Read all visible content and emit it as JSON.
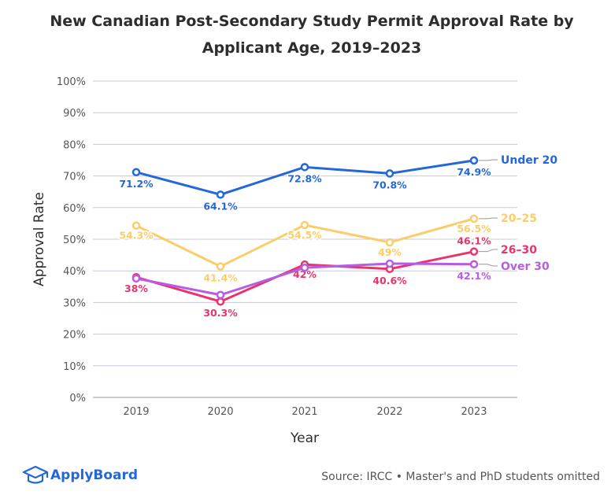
{
  "chart_data": {
    "type": "line",
    "title_line1": "New Canadian Post-Secondary Study Permit Approval Rate by",
    "title_line2": "Applicant Age, 2019–2023",
    "xlabel": "Year",
    "ylabel": "Approval Rate",
    "categories": [
      "2019",
      "2020",
      "2021",
      "2022",
      "2023"
    ],
    "ylim": [
      0,
      100
    ],
    "yticks": [
      "0%",
      "10%",
      "20%",
      "30%",
      "40%",
      "50%",
      "60%",
      "70%",
      "80%",
      "90%",
      "100%"
    ],
    "grid": true,
    "series": [
      {
        "name": "Under 20",
        "color": "#2467d8",
        "values": [
          71.2,
          64.1,
          72.8,
          70.8,
          74.9
        ],
        "labels": [
          "71.2%",
          "64.1%",
          "72.8%",
          "70.8%",
          "74.9%"
        ]
      },
      {
        "name": "20–25",
        "color": "#fbcd6a",
        "values": [
          54.3,
          41.4,
          54.5,
          49.0,
          56.5
        ],
        "labels": [
          "54.3%",
          "41.4%",
          "54.5%",
          "49%",
          "56.5%"
        ]
      },
      {
        "name": "26–30",
        "color": "#e8336f",
        "values": [
          38.0,
          30.3,
          42.0,
          40.6,
          46.1
        ],
        "labels": [
          "38%",
          "30.3%",
          "42%",
          "40.6%",
          "46.1%"
        ]
      },
      {
        "name": "Over 30",
        "color": "#b65ee3",
        "values": [
          37.6,
          32.4,
          41.0,
          42.3,
          42.1
        ],
        "labels": [
          "",
          "",
          "",
          "",
          "42.1%"
        ]
      }
    ]
  },
  "footer": {
    "logo_text": "ApplyBoard",
    "logo_color": "#2467d8",
    "source": "Source: IRCC • Master's and PhD students omitted"
  }
}
